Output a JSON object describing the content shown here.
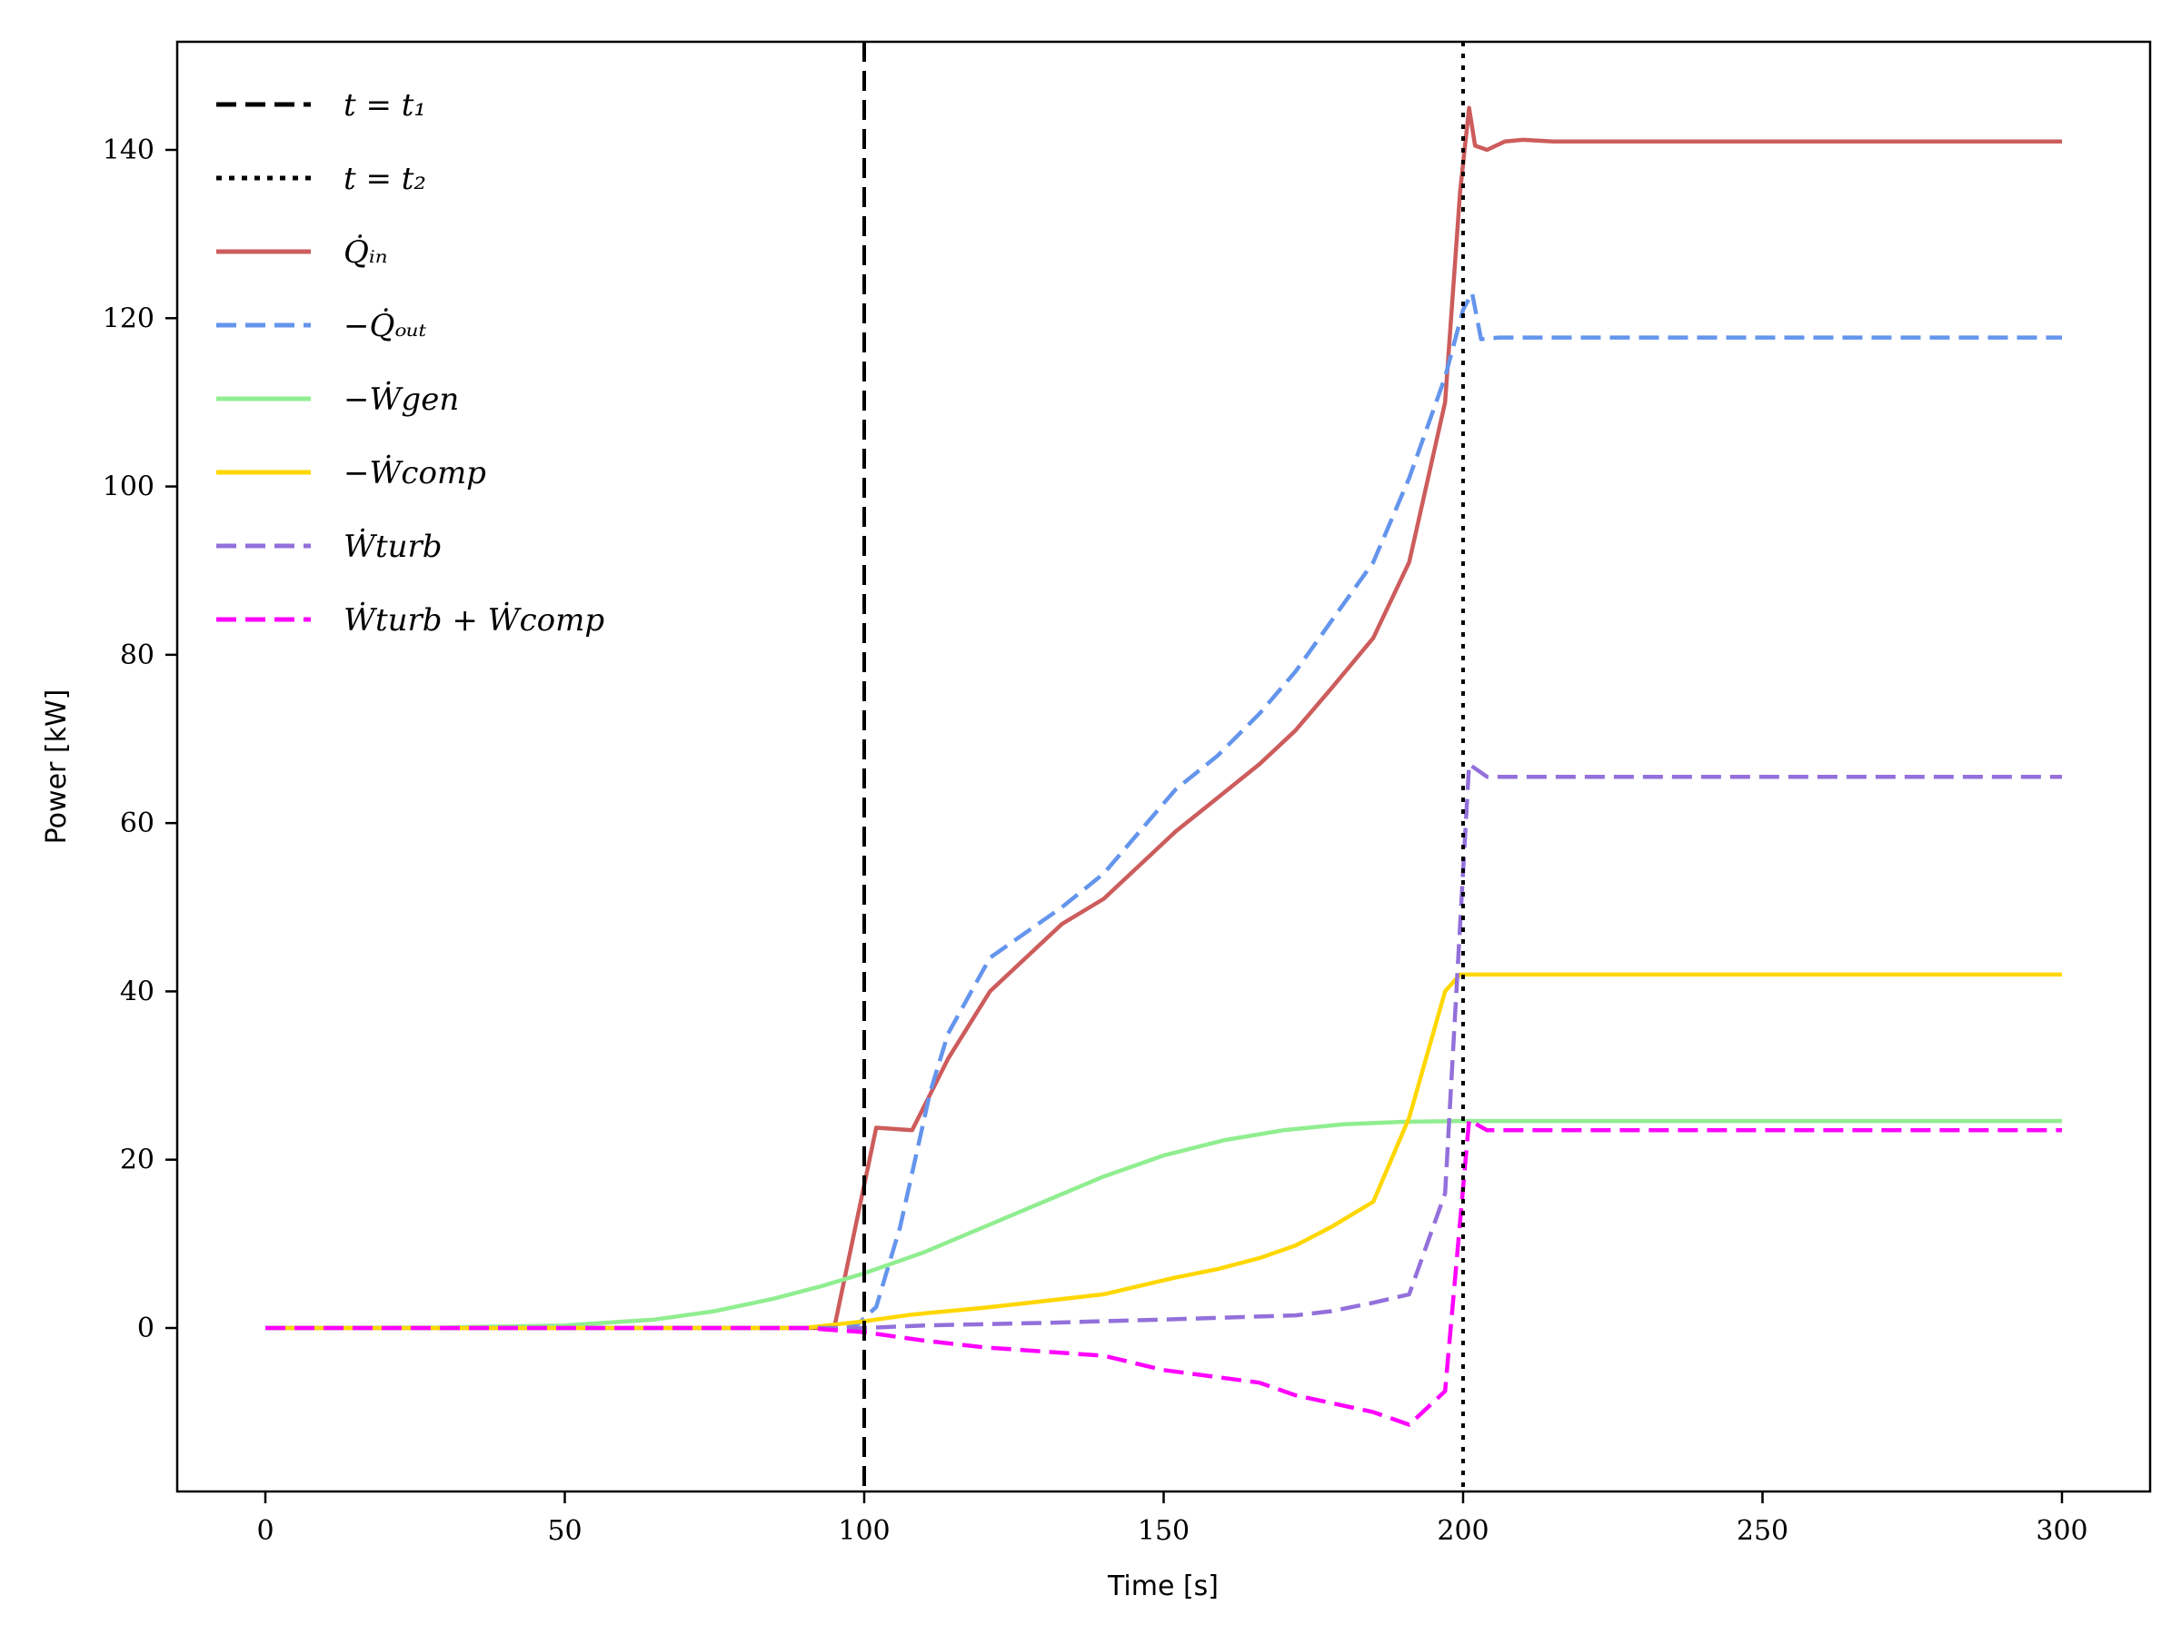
{
  "chart_data": {
    "type": "line",
    "title": "",
    "xlabel": "Time [s]",
    "ylabel": "Power [kW]",
    "xlim": [
      -15,
      315
    ],
    "ylim": [
      -20,
      153
    ],
    "xticks": [
      0,
      50,
      100,
      150,
      200,
      250,
      300
    ],
    "yticks": [
      0,
      20,
      40,
      60,
      80,
      100,
      120,
      140
    ],
    "grid": false,
    "legend_position": "upper left",
    "vlines": [
      {
        "name": "t = t1",
        "x": 100,
        "color": "#000000",
        "style": "dashed"
      },
      {
        "name": "t = t2",
        "x": 200,
        "color": "#000000",
        "style": "dotted"
      }
    ],
    "series": [
      {
        "name": "Q̇_in",
        "color": "#cd5c5c",
        "style": "solid",
        "x": [
          0,
          95,
          102,
          108,
          114,
          121,
          127,
          133,
          140,
          146,
          152,
          159,
          166,
          172,
          178,
          185,
          191,
          197,
          199.5,
          201,
          202,
          204,
          207,
          210,
          215,
          300
        ],
        "y": [
          0,
          0,
          23.8,
          23.5,
          32,
          40,
          44,
          48,
          51,
          55,
          59,
          63,
          67,
          71,
          76,
          82,
          91,
          110,
          135,
          145,
          140.5,
          140,
          141,
          141.2,
          141,
          141
        ]
      },
      {
        "name": "−Q̇_out",
        "color": "#6495ed",
        "style": "dashed",
        "x": [
          0,
          97,
          99,
          102,
          106,
          111,
          114,
          121,
          127,
          133,
          140,
          146,
          152,
          159,
          166,
          172,
          178,
          185,
          191,
          197,
          200,
          201.5,
          203,
          206,
          300
        ],
        "y": [
          0,
          0,
          0.5,
          2.5,
          12,
          28,
          35,
          44,
          47,
          50,
          54,
          59,
          64,
          68,
          73,
          78,
          84,
          91,
          101,
          113,
          121,
          123,
          117.5,
          117.7,
          117.7
        ]
      },
      {
        "name": "−Ẇ_gen",
        "color": "#90ee90",
        "style": "solid",
        "x": [
          0,
          30,
          50,
          65,
          75,
          85,
          93,
          100,
          110,
          120,
          130,
          140,
          150,
          160,
          170,
          180,
          190,
          200,
          300
        ],
        "y": [
          0,
          0.05,
          0.3,
          1,
          2,
          3.5,
          5,
          6.5,
          9,
          12,
          15,
          18,
          20.5,
          22.3,
          23.5,
          24.2,
          24.5,
          24.6,
          24.6
        ]
      },
      {
        "name": "−Ẇ_comp",
        "color": "#ffd700",
        "style": "solid",
        "x": [
          0,
          90,
          95,
          100,
          108,
          120,
          130,
          140,
          146,
          152,
          159,
          166,
          172,
          178,
          185,
          191,
          197,
          199.5,
          201,
          300
        ],
        "y": [
          0,
          0,
          0.4,
          0.8,
          1.6,
          2.4,
          3.2,
          4,
          5,
          6,
          7,
          8.3,
          9.8,
          12,
          15,
          25,
          40,
          42,
          42,
          42
        ]
      },
      {
        "name": "Ẇ_turb",
        "color": "#9370db",
        "style": "dashed",
        "x": [
          0,
          100,
          110,
          130,
          150,
          172,
          178,
          185,
          191,
          197,
          201,
          204,
          300
        ],
        "y": [
          0,
          0,
          0.3,
          0.6,
          1,
          1.5,
          2,
          3,
          4,
          16,
          67,
          65.5,
          65.5
        ]
      },
      {
        "name": "Ẇ_turb + Ẇ_comp",
        "color": "#ff00ff",
        "style": "dashed",
        "x": [
          0,
          90,
          100,
          110,
          120,
          140,
          150,
          166,
          172,
          185,
          191,
          197,
          201,
          204,
          300
        ],
        "y": [
          0,
          0,
          -0.5,
          -1.5,
          -2.3,
          -3.3,
          -5,
          -6.5,
          -8,
          -10,
          -11.5,
          -7.5,
          24.7,
          23.5,
          23.5
        ]
      }
    ]
  },
  "legend": {
    "items": [
      {
        "label": "t = t₁",
        "color": "#000000",
        "style": "dashed"
      },
      {
        "label": "t = t₂",
        "color": "#000000",
        "style": "dotted"
      },
      {
        "label": "Q̇ᵢₙ",
        "color": "#cd5c5c",
        "style": "solid"
      },
      {
        "label": "−Q̇ₒᵤₜ",
        "color": "#6495ed",
        "style": "dashed"
      },
      {
        "label": "−Ẇgen",
        "color": "#90ee90",
        "style": "solid"
      },
      {
        "label": "−Ẇcomp",
        "color": "#ffd700",
        "style": "solid"
      },
      {
        "label": "Ẇturb",
        "color": "#9370db",
        "style": "dashed"
      },
      {
        "label": "Ẇturb + Ẇcomp",
        "color": "#ff00ff",
        "style": "dashed"
      }
    ]
  },
  "axes": {
    "x_label": "Time [s]",
    "y_label": "Power [kW]",
    "x_tick_labels": [
      "0",
      "50",
      "100",
      "150",
      "200",
      "250",
      "300"
    ],
    "y_tick_labels": [
      "0",
      "20",
      "40",
      "60",
      "80",
      "100",
      "120",
      "140"
    ]
  }
}
